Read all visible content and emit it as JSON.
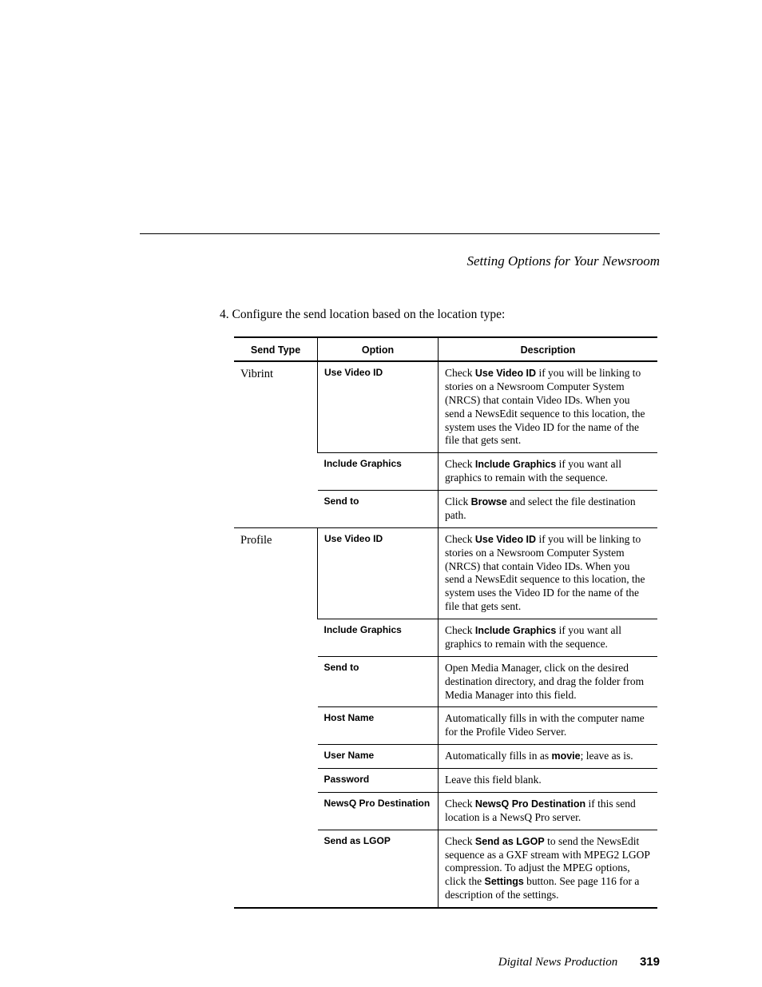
{
  "header": {
    "title": "Setting Options for Your Newsroom"
  },
  "intro": {
    "number": "4.",
    "text": "Configure the send location based on the location type:"
  },
  "table": {
    "headers": {
      "send_type": "Send Type",
      "option": "Option",
      "description": "Description"
    },
    "groups": [
      {
        "send_type": "Vibrint",
        "rows": [
          {
            "option": "Use Video ID",
            "desc": "Check <b>Use Video ID</b> if you will be linking to stories on a Newsroom Computer System (NRCS) that contain Video IDs. When you send a NewsEdit sequence to this location, the system uses the Video ID for the name of the file that gets sent."
          },
          {
            "option": "Include Graphics",
            "desc": "Check <b>Include Graphics</b> if you want all graphics to remain with the sequence."
          },
          {
            "option": "Send to",
            "desc": "Click <b>Browse</b> and select the file destination path."
          }
        ]
      },
      {
        "send_type": "Profile",
        "rows": [
          {
            "option": "Use Video ID",
            "desc": "Check <b>Use Video ID</b> if you will be linking to stories on a Newsroom Computer System (NRCS) that contain Video IDs. When you send a NewsEdit sequence to this location, the system uses the Video ID for the name of the file that gets sent."
          },
          {
            "option": "Include Graphics",
            "desc": "Check <b>Include Graphics</b> if you want all graphics to remain with the sequence."
          },
          {
            "option": "Send to",
            "desc": "Open Media Manager, click on the desired destination directory, and drag the folder from Media Manager into this field."
          },
          {
            "option": "Host Name",
            "desc": "Automatically fills in with the computer name for the Profile Video Server."
          },
          {
            "option": "User Name",
            "desc": "Automatically fills in as <b>movie</b>; leave as is."
          },
          {
            "option": "Password",
            "desc": "Leave this field blank."
          },
          {
            "option": "NewsQ Pro Destination",
            "desc": "Check <b>NewsQ Pro Destination</b> if this send location is a NewsQ Pro server."
          },
          {
            "option": "Send as LGOP",
            "desc": "Check <b>Send as LGOP</b> to send the NewsEdit sequence as a GXF stream with MPEG2 LGOP compression. To adjust the MPEG options, click the <b>Settings</b> button. See page 116 for a description of the settings."
          }
        ]
      }
    ]
  },
  "footer": {
    "book": "Digital News Production",
    "page_number": "319"
  }
}
